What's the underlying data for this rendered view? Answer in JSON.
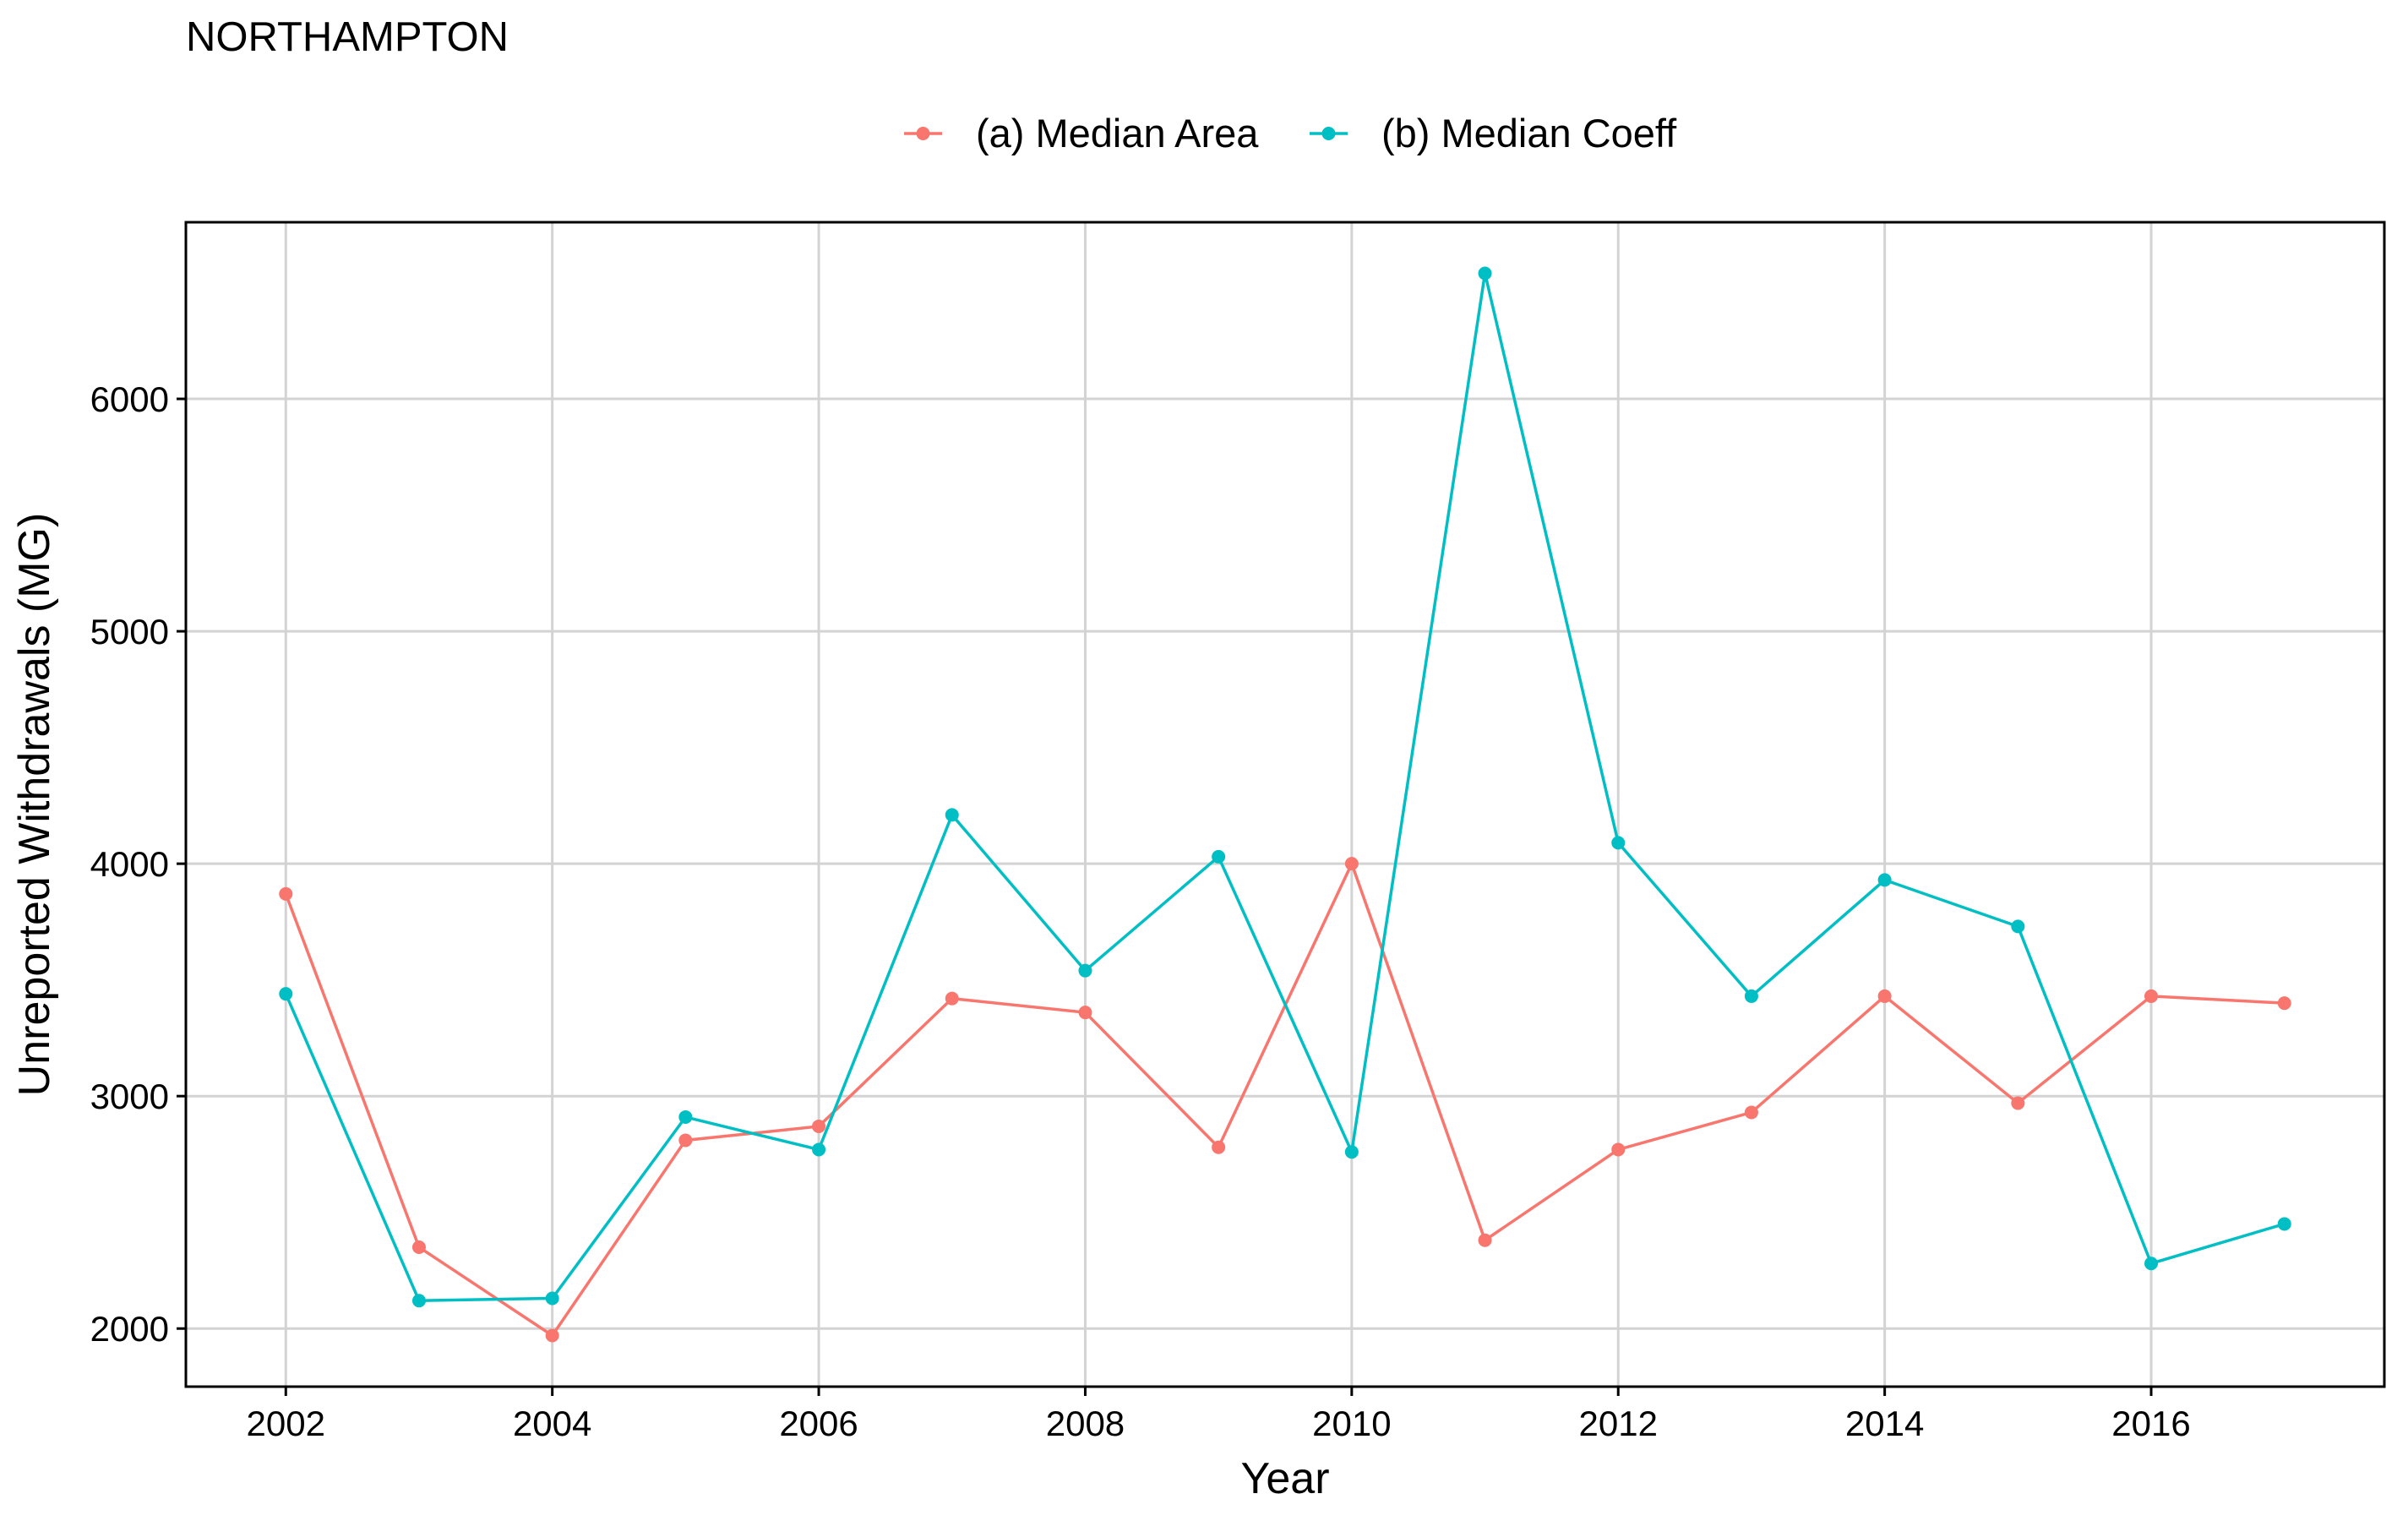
{
  "chart_data": {
    "type": "line",
    "title": "NORTHAMPTON",
    "xlabel": "Year",
    "ylabel": "Unreported Withdrawals (MG)",
    "x": [
      2002,
      2003,
      2004,
      2005,
      2006,
      2007,
      2008,
      2009,
      2010,
      2011,
      2012,
      2013,
      2014,
      2015,
      2016,
      2017
    ],
    "x_ticks": [
      2002,
      2004,
      2006,
      2008,
      2010,
      2012,
      2014,
      2016
    ],
    "y_ticks": [
      2000,
      3000,
      4000,
      5000,
      6000
    ],
    "xlim": [
      2001.25,
      2017.75
    ],
    "ylim": [
      1750,
      6760
    ],
    "grid": true,
    "legend_position": "top",
    "series": [
      {
        "name": "(a) Median Area",
        "color": "#F8766D",
        "values": [
          3870,
          2350,
          1970,
          2810,
          2870,
          3420,
          3360,
          2780,
          4000,
          2380,
          2770,
          2930,
          3430,
          2970,
          3430,
          3400
        ]
      },
      {
        "name": "(b) Median Coeff",
        "color": "#00BFC4",
        "values": [
          3440,
          2120,
          2130,
          2910,
          2770,
          4210,
          3540,
          4030,
          2760,
          6540,
          4090,
          3430,
          3930,
          3730,
          2280,
          2450
        ]
      }
    ]
  }
}
